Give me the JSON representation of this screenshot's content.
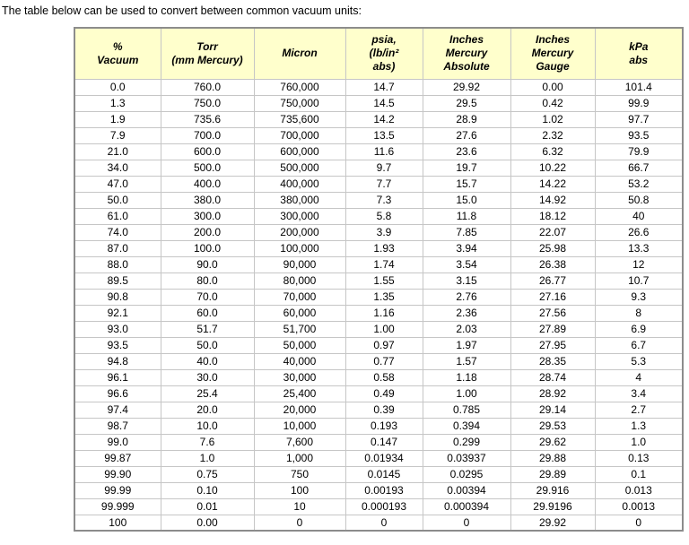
{
  "page": {
    "title": "The table below can be used to convert between common vacuum units:"
  },
  "colors": {
    "header_bg": "#FFFFCC",
    "border_outer": "#8c8c8c",
    "border_inner": "#c6c6c6"
  },
  "table": {
    "headers": [
      {
        "lines": [
          "%",
          "Vacuum"
        ]
      },
      {
        "lines": [
          "Torr",
          "(mm Mercury)"
        ]
      },
      {
        "lines": [
          "Micron"
        ]
      },
      {
        "lines": [
          "psia,",
          "(lb/in²",
          "abs)"
        ]
      },
      {
        "lines": [
          "Inches",
          "Mercury",
          "Absolute"
        ]
      },
      {
        "lines": [
          "Inches",
          "Mercury",
          "Gauge"
        ]
      },
      {
        "lines": [
          "kPa",
          "abs"
        ]
      }
    ],
    "rows": [
      [
        "0.0",
        "760.0",
        "760,000",
        "14.7",
        "29.92",
        "0.00",
        "101.4"
      ],
      [
        "1.3",
        "750.0",
        "750,000",
        "14.5",
        "29.5",
        "0.42",
        "99.9"
      ],
      [
        "1.9",
        "735.6",
        "735,600",
        "14.2",
        "28.9",
        "1.02",
        "97.7"
      ],
      [
        "7.9",
        "700.0",
        "700,000",
        "13.5",
        "27.6",
        "2.32",
        "93.5"
      ],
      [
        "21.0",
        "600.0",
        "600,000",
        "11.6",
        "23.6",
        "6.32",
        "79.9"
      ],
      [
        "34.0",
        "500.0",
        "500,000",
        "9.7",
        "19.7",
        "10.22",
        "66.7"
      ],
      [
        "47.0",
        "400.0",
        "400,000",
        "7.7",
        "15.7",
        "14.22",
        "53.2"
      ],
      [
        "50.0",
        "380.0",
        "380,000",
        "7.3",
        "15.0",
        "14.92",
        "50.8"
      ],
      [
        "61.0",
        "300.0",
        "300,000",
        "5.8",
        "11.8",
        "18.12",
        "40"
      ],
      [
        "74.0",
        "200.0",
        "200,000",
        "3.9",
        "7.85",
        "22.07",
        "26.6"
      ],
      [
        "87.0",
        "100.0",
        "100,000",
        "1.93",
        "3.94",
        "25.98",
        "13.3"
      ],
      [
        "88.0",
        "90.0",
        "90,000",
        "1.74",
        "3.54",
        "26.38",
        "12"
      ],
      [
        "89.5",
        "80.0",
        "80,000",
        "1.55",
        "3.15",
        "26.77",
        "10.7"
      ],
      [
        "90.8",
        "70.0",
        "70,000",
        "1.35",
        "2.76",
        "27.16",
        "9.3"
      ],
      [
        "92.1",
        "60.0",
        "60,000",
        "1.16",
        "2.36",
        "27.56",
        "8"
      ],
      [
        "93.0",
        "51.7",
        "51,700",
        "1.00",
        "2.03",
        "27.89",
        "6.9"
      ],
      [
        "93.5",
        "50.0",
        "50,000",
        "0.97",
        "1.97",
        "27.95",
        "6.7"
      ],
      [
        "94.8",
        "40.0",
        "40,000",
        "0.77",
        "1.57",
        "28.35",
        "5.3"
      ],
      [
        "96.1",
        "30.0",
        "30,000",
        "0.58",
        "1.18",
        "28.74",
        "4"
      ],
      [
        "96.6",
        "25.4",
        "25,400",
        "0.49",
        "1.00",
        "28.92",
        "3.4"
      ],
      [
        "97.4",
        "20.0",
        "20,000",
        "0.39",
        "0.785",
        "29.14",
        "2.7"
      ],
      [
        "98.7",
        "10.0",
        "10,000",
        "0.193",
        "0.394",
        "29.53",
        "1.3"
      ],
      [
        "99.0",
        "7.6",
        "7,600",
        "0.147",
        "0.299",
        "29.62",
        "1.0"
      ],
      [
        "99.87",
        "1.0",
        "1,000",
        "0.01934",
        "0.03937",
        "29.88",
        "0.13"
      ],
      [
        "99.90",
        "0.75",
        "750",
        "0.0145",
        "0.0295",
        "29.89",
        "0.1"
      ],
      [
        "99.99",
        "0.10",
        "100",
        "0.00193",
        "0.00394",
        "29.916",
        "0.013"
      ],
      [
        "99.999",
        "0.01",
        "10",
        "0.000193",
        "0.000394",
        "29.9196",
        "0.0013"
      ],
      [
        "100",
        "0.00",
        "0",
        "0",
        "0",
        "29.92",
        "0"
      ]
    ]
  }
}
